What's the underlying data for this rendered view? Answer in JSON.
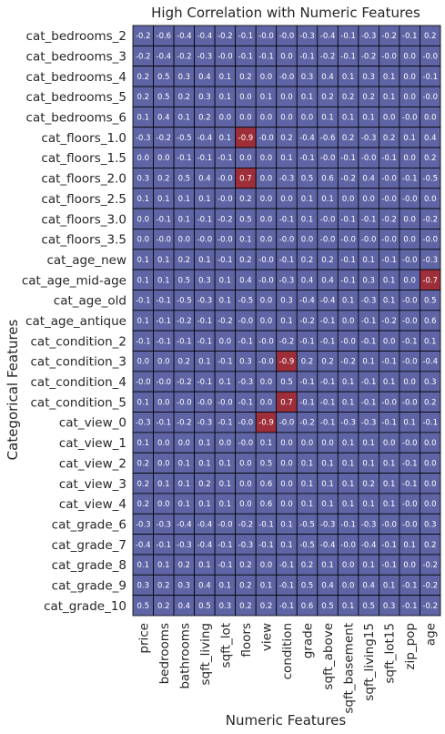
{
  "chart_data": {
    "type": "heatmap",
    "title": "High Correlation with Numeric Features",
    "xlabel": "Numeric Features",
    "ylabel": "Categorical Features",
    "columns": [
      "price",
      "bedrooms",
      "bathrooms",
      "sqft_living",
      "sqft_lot",
      "floors",
      "view",
      "condition",
      "grade",
      "sqft_above",
      "sqft_basement",
      "sqft_living15",
      "sqft_lot15",
      "zip_pop",
      "age"
    ],
    "rows": [
      "cat_bedrooms_2",
      "cat_bedrooms_3",
      "cat_bedrooms_4",
      "cat_bedrooms_5",
      "cat_bedrooms_6",
      "cat_floors_1.0",
      "cat_floors_1.5",
      "cat_floors_2.0",
      "cat_floors_2.5",
      "cat_floors_3.0",
      "cat_floors_3.5",
      "cat_age_new",
      "cat_age_mid-age",
      "cat_age_old",
      "cat_age_antique",
      "cat_condition_2",
      "cat_condition_3",
      "cat_condition_4",
      "cat_condition_5",
      "cat_view_0",
      "cat_view_1",
      "cat_view_2",
      "cat_view_3",
      "cat_view_4",
      "cat_grade_6",
      "cat_grade_7",
      "cat_grade_8",
      "cat_grade_9",
      "cat_grade_10"
    ],
    "values": [
      [
        "-0.2",
        "-0.6",
        "-0.4",
        "-0.4",
        "-0.2",
        "-0.1",
        "-0.0",
        "-0.0",
        "-0.3",
        "-0.4",
        "-0.1",
        "-0.3",
        "-0.2",
        "-0.1",
        "0.2"
      ],
      [
        "-0.2",
        "-0.4",
        "-0.2",
        "-0.3",
        "-0.0",
        "-0.1",
        "-0.1",
        "0.0",
        "-0.1",
        "-0.2",
        "-0.1",
        "-0.2",
        "-0.0",
        "0.0",
        "-0.0"
      ],
      [
        "0.2",
        "0.5",
        "0.3",
        "0.4",
        "0.1",
        "0.2",
        "0.0",
        "-0.0",
        "0.3",
        "0.4",
        "0.1",
        "0.3",
        "0.1",
        "0.0",
        "-0.1"
      ],
      [
        "0.2",
        "0.5",
        "0.2",
        "0.3",
        "0.1",
        "0.0",
        "0.1",
        "0.0",
        "0.1",
        "0.2",
        "0.2",
        "0.2",
        "0.1",
        "0.0",
        "-0.0"
      ],
      [
        "0.1",
        "0.4",
        "0.1",
        "0.2",
        "0.0",
        "0.0",
        "0.0",
        "0.0",
        "0.0",
        "0.1",
        "0.1",
        "0.1",
        "0.0",
        "-0.0",
        "0.0"
      ],
      [
        "-0.3",
        "-0.2",
        "-0.5",
        "-0.4",
        "0.1",
        "-0.9",
        "-0.0",
        "0.2",
        "-0.4",
        "-0.6",
        "0.2",
        "-0.3",
        "0.2",
        "0.1",
        "0.4"
      ],
      [
        "0.0",
        "0.0",
        "-0.1",
        "-0.1",
        "-0.1",
        "0.0",
        "0.0",
        "0.1",
        "-0.1",
        "-0.0",
        "-0.1",
        "-0.0",
        "-0.1",
        "0.0",
        "0.2"
      ],
      [
        "0.3",
        "0.2",
        "0.5",
        "0.4",
        "-0.0",
        "0.7",
        "0.0",
        "-0.3",
        "0.5",
        "0.6",
        "-0.2",
        "0.4",
        "-0.0",
        "-0.1",
        "-0.5"
      ],
      [
        "0.1",
        "0.1",
        "0.1",
        "0.1",
        "-0.0",
        "0.2",
        "0.0",
        "0.0",
        "0.1",
        "0.1",
        "0.0",
        "0.0",
        "-0.0",
        "-0.0",
        "0.0"
      ],
      [
        "0.0",
        "-0.1",
        "0.1",
        "-0.1",
        "-0.2",
        "0.5",
        "0.0",
        "-0.1",
        "0.1",
        "-0.0",
        "-0.1",
        "-0.1",
        "-0.2",
        "0.0",
        "-0.2"
      ],
      [
        "0.0",
        "-0.0",
        "0.0",
        "-0.0",
        "-0.0",
        "0.1",
        "0.0",
        "-0.0",
        "0.0",
        "-0.0",
        "-0.0",
        "-0.0",
        "-0.0",
        "0.0",
        "-0.0"
      ],
      [
        "0.1",
        "0.1",
        "0.2",
        "0.1",
        "-0.1",
        "0.2",
        "-0.0",
        "-0.1",
        "0.2",
        "0.2",
        "-0.1",
        "0.1",
        "-0.1",
        "-0.0",
        "-0.3"
      ],
      [
        "0.1",
        "0.1",
        "0.5",
        "0.3",
        "0.1",
        "0.4",
        "-0.0",
        "-0.3",
        "0.4",
        "0.4",
        "-0.1",
        "0.3",
        "0.1",
        "0.0",
        "-0.7"
      ],
      [
        "-0.1",
        "-0.1",
        "-0.5",
        "-0.3",
        "0.1",
        "-0.5",
        "0.0",
        "0.3",
        "-0.4",
        "-0.4",
        "0.1",
        "-0.3",
        "0.1",
        "-0.0",
        "0.5"
      ],
      [
        "0.1",
        "-0.1",
        "-0.2",
        "-0.1",
        "-0.2",
        "-0.0",
        "0.0",
        "0.1",
        "-0.2",
        "-0.1",
        "0.0",
        "-0.1",
        "-0.2",
        "-0.0",
        "0.6"
      ],
      [
        "-0.1",
        "-0.1",
        "-0.1",
        "-0.1",
        "0.0",
        "-0.1",
        "-0.0",
        "-0.2",
        "-0.1",
        "-0.1",
        "-0.0",
        "-0.1",
        "0.0",
        "-0.1",
        "0.1"
      ],
      [
        "0.0",
        "0.0",
        "0.2",
        "0.1",
        "-0.1",
        "0.3",
        "-0.0",
        "-0.9",
        "0.2",
        "0.2",
        "-0.2",
        "0.1",
        "-0.1",
        "-0.0",
        "-0.4"
      ],
      [
        "-0.0",
        "-0.0",
        "-0.2",
        "-0.1",
        "0.1",
        "-0.3",
        "0.0",
        "0.5",
        "-0.1",
        "-0.1",
        "0.1",
        "-0.1",
        "0.1",
        "0.0",
        "0.3"
      ],
      [
        "0.1",
        "0.0",
        "-0.0",
        "-0.0",
        "-0.0",
        "-0.1",
        "0.0",
        "0.7",
        "-0.1",
        "-0.1",
        "0.1",
        "-0.1",
        "-0.0",
        "-0.0",
        "0.2"
      ],
      [
        "-0.3",
        "-0.1",
        "-0.2",
        "-0.3",
        "-0.1",
        "-0.0",
        "-0.9",
        "-0.0",
        "-0.2",
        "-0.1",
        "-0.3",
        "-0.3",
        "-0.1",
        "0.1",
        "-0.1"
      ],
      [
        "0.1",
        "0.0",
        "0.0",
        "0.1",
        "0.0",
        "-0.0",
        "0.1",
        "0.0",
        "0.0",
        "0.0",
        "0.1",
        "0.1",
        "0.0",
        "-0.0",
        "0.0"
      ],
      [
        "0.2",
        "0.0",
        "0.1",
        "0.1",
        "0.1",
        "0.0",
        "0.5",
        "0.0",
        "0.1",
        "0.1",
        "0.1",
        "0.1",
        "0.1",
        "-0.1",
        "0.0"
      ],
      [
        "0.2",
        "0.1",
        "0.1",
        "0.2",
        "0.1",
        "0.0",
        "0.6",
        "0.0",
        "0.1",
        "0.1",
        "0.1",
        "0.2",
        "0.1",
        "-0.1",
        "0.0"
      ],
      [
        "0.2",
        "0.0",
        "0.1",
        "0.1",
        "0.1",
        "0.0",
        "0.6",
        "0.0",
        "0.1",
        "0.1",
        "0.1",
        "0.1",
        "0.1",
        "-0.0",
        "0.0"
      ],
      [
        "-0.3",
        "-0.3",
        "-0.4",
        "-0.4",
        "-0.0",
        "-0.2",
        "-0.1",
        "0.1",
        "-0.5",
        "-0.3",
        "-0.1",
        "-0.3",
        "-0.0",
        "-0.0",
        "0.3"
      ],
      [
        "-0.4",
        "-0.1",
        "-0.3",
        "-0.4",
        "-0.1",
        "-0.3",
        "-0.1",
        "0.1",
        "-0.5",
        "-0.4",
        "-0.0",
        "-0.4",
        "-0.1",
        "0.1",
        "0.2"
      ],
      [
        "0.1",
        "0.1",
        "0.2",
        "0.1",
        "-0.1",
        "0.2",
        "0.0",
        "-0.1",
        "0.2",
        "0.1",
        "0.0",
        "0.1",
        "-0.1",
        "0.0",
        "-0.2"
      ],
      [
        "0.3",
        "0.2",
        "0.3",
        "0.4",
        "0.1",
        "0.2",
        "0.1",
        "-0.1",
        "0.5",
        "0.4",
        "0.0",
        "0.4",
        "0.1",
        "-0.1",
        "-0.2"
      ],
      [
        "0.5",
        "0.2",
        "0.4",
        "0.5",
        "0.3",
        "0.2",
        "0.2",
        "-0.1",
        "0.6",
        "0.5",
        "0.1",
        "0.5",
        "0.3",
        "-0.1",
        "-0.2"
      ]
    ],
    "highlight_threshold": 0.65,
    "colors": {
      "normal": "#5e64a4",
      "high": "#9e2e3a",
      "grid": "#000000",
      "cell_text": "#ffffff"
    },
    "grid": true
  }
}
